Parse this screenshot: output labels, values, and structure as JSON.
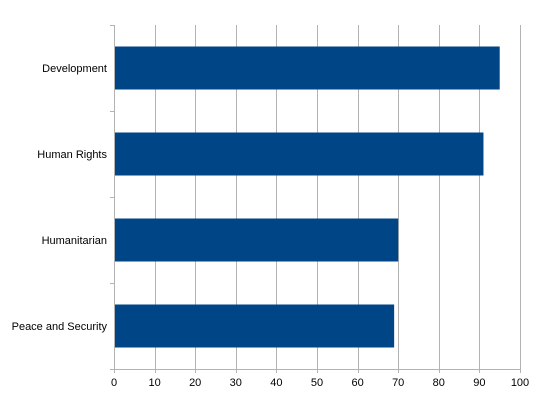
{
  "chart_data": {
    "type": "bar",
    "orientation": "horizontal",
    "title": "",
    "xlabel": "",
    "ylabel": "",
    "categories": [
      "Development",
      "Human Rights",
      "Humanitarian",
      "Peace and Security"
    ],
    "values": [
      95,
      91,
      70,
      69
    ],
    "xlim": [
      0,
      100
    ],
    "x_ticks": [
      "0",
      "10",
      "20",
      "30",
      "40",
      "50",
      "60",
      "70",
      "80",
      "90",
      "100"
    ],
    "grid": true,
    "legend": "none",
    "bar_color": "#004586",
    "grid_color": "#b3b3b3"
  }
}
